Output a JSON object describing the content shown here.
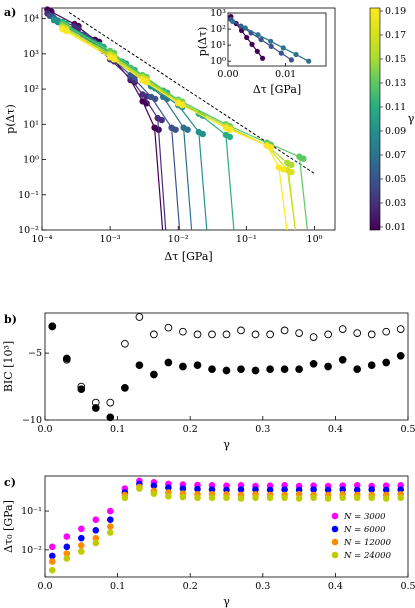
{
  "chart_data": [
    {
      "panel": "a)",
      "type": "scatter",
      "xlabel": "Δτ [GPa]",
      "ylabel": "p(Δτ)",
      "xscale": "log",
      "yscale": "log",
      "xlim": [
        0.0001,
        2
      ],
      "ylim": [
        0.01,
        20000
      ],
      "x_ticks": [
        "10⁻⁴",
        "10⁻³",
        "10⁻²",
        "10⁻¹",
        "10⁰"
      ],
      "y_ticks": [
        "10⁻²",
        "10⁻¹",
        "10⁰",
        "10¹",
        "10²",
        "10³",
        "10⁴"
      ],
      "colorbar": {
        "label": "γ",
        "ticks": [
          "0.01",
          "0.03",
          "0.05",
          "0.07",
          "0.09",
          "0.11",
          "0.13",
          "0.15",
          "0.17",
          "0.19"
        ],
        "range": [
          0.01,
          0.19
        ]
      },
      "series": [
        {
          "gamma": 0.01,
          "color": "#440154",
          "points": [
            [
              0.00012,
              18000
            ],
            [
              0.0003,
              7000
            ],
            [
              0.0006,
              2500
            ],
            [
              0.001,
              900
            ],
            [
              0.002,
              180
            ],
            [
              0.003,
              45
            ],
            [
              0.0045,
              8
            ]
          ]
        },
        {
          "gamma": 0.03,
          "color": "#472d7b",
          "points": [
            [
              0.00012,
              14000
            ],
            [
              0.0003,
              6000
            ],
            [
              0.001,
              700
            ],
            [
              0.002,
              200
            ],
            [
              0.003,
              70
            ],
            [
              0.005,
              15
            ]
          ]
        },
        {
          "gamma": 0.05,
          "color": "#3b528b",
          "points": [
            [
              0.00013,
              12000
            ],
            [
              0.0004,
              3500
            ],
            [
              0.0008,
              1200
            ],
            [
              0.002,
              250
            ],
            [
              0.004,
              60
            ],
            [
              0.008,
              8
            ]
          ]
        },
        {
          "gamma": 0.07,
          "color": "#2c728e",
          "points": [
            [
              0.00015,
              10000
            ],
            [
              0.0005,
              2500
            ],
            [
              0.001,
              800
            ],
            [
              0.003,
              180
            ],
            [
              0.006,
              60
            ],
            [
              0.012,
              8
            ]
          ]
        },
        {
          "gamma": 0.09,
          "color": "#21918c",
          "points": [
            [
              0.00015,
              9000
            ],
            [
              0.0006,
              2000
            ],
            [
              0.0015,
              600
            ],
            [
              0.004,
              120
            ],
            [
              0.01,
              35
            ],
            [
              0.02,
              6
            ]
          ]
        },
        {
          "gamma": 0.11,
          "color": "#28ae80",
          "points": [
            [
              0.0002,
              8000
            ],
            [
              0.0007,
              1800
            ],
            [
              0.002,
              400
            ],
            [
              0.006,
              90
            ],
            [
              0.02,
              20
            ],
            [
              0.05,
              5
            ]
          ]
        },
        {
          "gamma": 0.13,
          "color": "#5ec962",
          "points": [
            [
              0.0002,
              7000
            ],
            [
              0.001,
              1200
            ],
            [
              0.003,
              250
            ],
            [
              0.01,
              50
            ],
            [
              0.05,
              10
            ],
            [
              0.2,
              3
            ],
            [
              0.6,
              1.2
            ]
          ]
        },
        {
          "gamma": 0.15,
          "color": "#addc30",
          "points": [
            [
              0.0002,
              6000
            ],
            [
              0.001,
              1000
            ],
            [
              0.003,
              220
            ],
            [
              0.01,
              45
            ],
            [
              0.05,
              9
            ],
            [
              0.2,
              2.5
            ],
            [
              0.4,
              0.8
            ]
          ]
        },
        {
          "gamma": 0.17,
          "color": "#d8e219",
          "points": [
            [
              0.0002,
              5500
            ],
            [
              0.001,
              900
            ],
            [
              0.003,
              200
            ],
            [
              0.01,
              40
            ],
            [
              0.05,
              8
            ],
            [
              0.2,
              2.5
            ],
            [
              0.4,
              0.5
            ]
          ]
        },
        {
          "gamma": 0.19,
          "color": "#fde725",
          "points": [
            [
              0.0002,
              5000
            ],
            [
              0.001,
              800
            ],
            [
              0.003,
              180
            ],
            [
              0.01,
              40
            ],
            [
              0.05,
              8
            ],
            [
              0.2,
              2.5
            ],
            [
              0.3,
              0.6
            ]
          ]
        }
      ],
      "inset": {
        "xlabel": "Δτ [GPa]",
        "ylabel": "p(Δτ)",
        "xlim": [
          0,
          0.017
        ],
        "ylim": [
          0.5,
          1000
        ],
        "yscale": "log",
        "x_ticks": [
          "0.00",
          "0.01"
        ],
        "y_ticks": [
          "10⁰",
          "10¹",
          "10²",
          "10³"
        ]
      }
    },
    {
      "panel": "b)",
      "type": "scatter",
      "xlabel": "γ",
      "ylabel": "BIC [10³]",
      "xlim": [
        0.0,
        0.5
      ],
      "ylim": [
        -10,
        -2
      ],
      "x_ticks": [
        "0.0",
        "0.1",
        "0.2",
        "0.3",
        "0.4",
        "0.5"
      ],
      "y_ticks": [
        "−5",
        "−10"
      ],
      "series": [
        {
          "marker": "open",
          "x": [
            0.01,
            0.03,
            0.05,
            0.07,
            0.09,
            0.11,
            0.13,
            0.15,
            0.17,
            0.19,
            0.21,
            0.23,
            0.25,
            0.27,
            0.29,
            0.31,
            0.33,
            0.35,
            0.37,
            0.39,
            0.41,
            0.43,
            0.45,
            0.47,
            0.49
          ],
          "y": [
            -3.0,
            -5.5,
            -7.5,
            -8.7,
            -8.7,
            -4.3,
            -2.3,
            -3.6,
            -3.1,
            -3.4,
            -3.6,
            -3.6,
            -3.6,
            -3.3,
            -3.6,
            -3.6,
            -3.3,
            -3.5,
            -3.8,
            -3.6,
            -3.2,
            -3.5,
            -3.6,
            -3.4,
            -3.2
          ]
        },
        {
          "marker": "filled",
          "x": [
            0.01,
            0.03,
            0.05,
            0.07,
            0.09,
            0.11,
            0.13,
            0.15,
            0.17,
            0.19,
            0.21,
            0.23,
            0.25,
            0.27,
            0.29,
            0.31,
            0.33,
            0.35,
            0.37,
            0.39,
            0.41,
            0.43,
            0.45,
            0.47,
            0.49
          ],
          "y": [
            -3.0,
            -5.4,
            -7.7,
            -9.1,
            -9.8,
            -7.6,
            -5.9,
            -6.6,
            -5.7,
            -6.0,
            -5.9,
            -6.2,
            -6.3,
            -6.2,
            -6.3,
            -6.2,
            -6.2,
            -6.2,
            -5.8,
            -6.0,
            -5.5,
            -6.2,
            -5.9,
            -5.7,
            -5.2
          ]
        }
      ]
    },
    {
      "panel": "c)",
      "type": "scatter",
      "xlabel": "γ",
      "ylabel": "Δτ₀ [GPa]",
      "yscale": "log",
      "xlim": [
        0.0,
        0.5
      ],
      "ylim": [
        0.002,
        0.8
      ],
      "x_ticks": [
        "0.0",
        "0.1",
        "0.2",
        "0.3",
        "0.4",
        "0.5"
      ],
      "y_ticks": [
        "10⁻²",
        "10⁻¹"
      ],
      "legend_position": "lower-right",
      "x": [
        0.01,
        0.03,
        0.05,
        0.07,
        0.09,
        0.11,
        0.13,
        0.15,
        0.17,
        0.19,
        0.21,
        0.23,
        0.25,
        0.27,
        0.29,
        0.31,
        0.33,
        0.35,
        0.37,
        0.39,
        0.41,
        0.43,
        0.45,
        0.47,
        0.49
      ],
      "series": [
        {
          "name": "N = 3000",
          "color": "#ff00ff",
          "values": [
            0.012,
            0.022,
            0.035,
            0.06,
            0.1,
            0.38,
            0.6,
            0.55,
            0.5,
            0.48,
            0.47,
            0.46,
            0.45,
            0.46,
            0.44,
            0.45,
            0.46,
            0.44,
            0.45,
            0.44,
            0.45,
            0.46,
            0.44,
            0.45,
            0.46
          ]
        },
        {
          "name": "N = 6000",
          "color": "#0000ff",
          "values": [
            0.007,
            0.012,
            0.02,
            0.032,
            0.06,
            0.3,
            0.5,
            0.45,
            0.4,
            0.38,
            0.37,
            0.36,
            0.35,
            0.36,
            0.36,
            0.35,
            0.36,
            0.35,
            0.36,
            0.35,
            0.36,
            0.35,
            0.36,
            0.35,
            0.36
          ]
        },
        {
          "name": "N = 12000",
          "color": "#ff8c00",
          "values": [
            0.005,
            0.008,
            0.013,
            0.02,
            0.04,
            0.26,
            0.42,
            0.33,
            0.3,
            0.28,
            0.27,
            0.27,
            0.27,
            0.26,
            0.27,
            0.26,
            0.26,
            0.27,
            0.26,
            0.26,
            0.27,
            0.26,
            0.26,
            0.26,
            0.27
          ]
        },
        {
          "name": "N = 24000",
          "color": "#bfcc00",
          "values": [
            0.003,
            0.006,
            0.009,
            0.015,
            0.028,
            0.22,
            0.38,
            0.28,
            0.24,
            0.23,
            0.22,
            0.22,
            0.22,
            0.21,
            0.22,
            0.22,
            0.22,
            0.21,
            0.22,
            0.21,
            0.22,
            0.22,
            0.22,
            0.21,
            0.22
          ]
        }
      ]
    }
  ]
}
